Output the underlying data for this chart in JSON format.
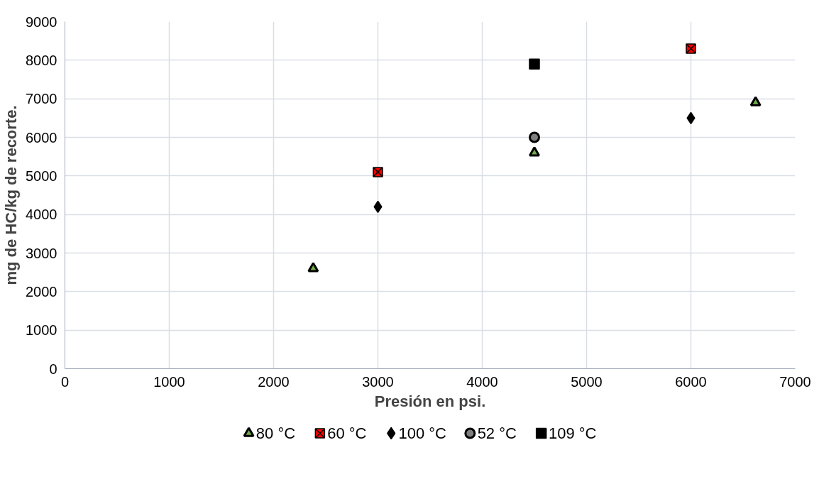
{
  "chart_data": {
    "type": "scatter",
    "xlabel": "Presión en psi.",
    "ylabel": "mg de HC/kg de recorte.",
    "xlim": [
      0,
      7000
    ],
    "xticks": [
      0,
      1000,
      2000,
      3000,
      4000,
      5000,
      6000,
      7000
    ],
    "ylim": [
      0,
      9000
    ],
    "yticks": [
      0,
      1000,
      2000,
      3000,
      4000,
      5000,
      6000,
      7000,
      8000,
      9000
    ],
    "grid": true,
    "legend": "bottom",
    "series": [
      {
        "name": "80 °C",
        "color": "#70ad47",
        "marker": "triangle",
        "x": [
          2380,
          4500,
          6620
        ],
        "values": [
          2600,
          5600,
          6900
        ]
      },
      {
        "name": "60 °C",
        "color": "#ff0000",
        "marker": "cross",
        "x": [
          3000,
          6000
        ],
        "values": [
          5100,
          8300
        ]
      },
      {
        "name": "100 °C",
        "color": "#000000",
        "marker": "diamond",
        "x": [
          3000,
          6000
        ],
        "values": [
          4200,
          6500
        ]
      },
      {
        "name": "52 °C",
        "color": "#7f7f7f",
        "marker": "circle",
        "x": [
          4500
        ],
        "values": [
          6000
        ]
      },
      {
        "name": "109 °C",
        "color": "#000000",
        "marker": "square",
        "x": [
          4500
        ],
        "values": [
          7900
        ]
      }
    ]
  }
}
